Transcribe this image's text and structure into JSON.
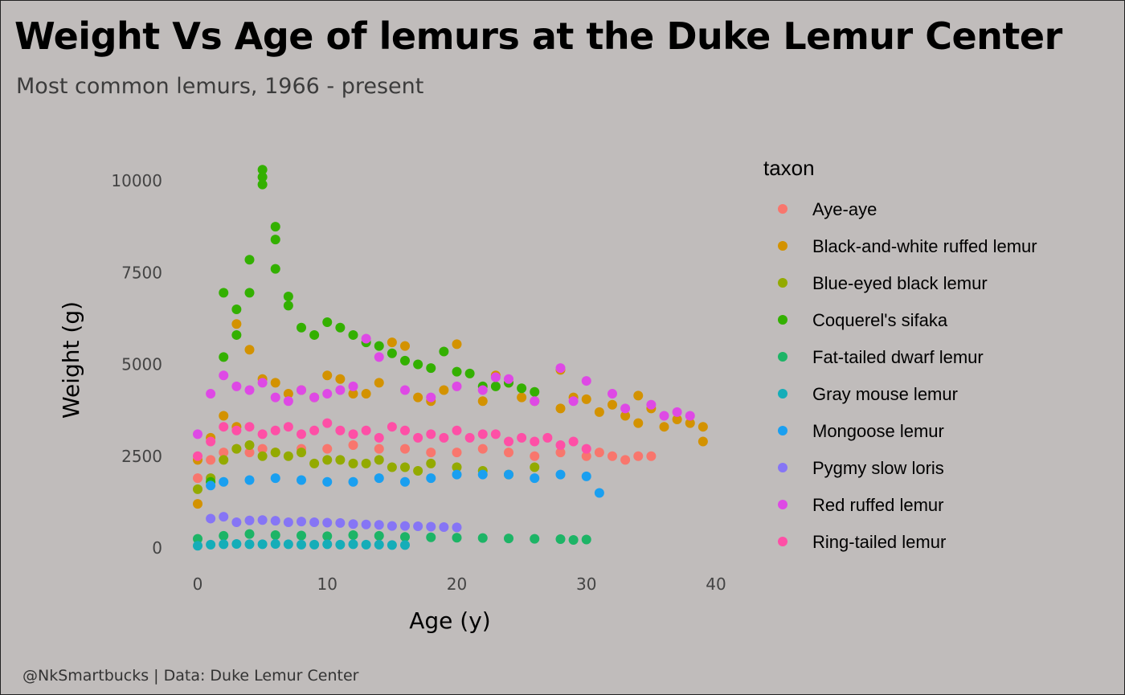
{
  "header": {
    "title": "Weight Vs Age of lemurs at the Duke Lemur Center",
    "subtitle": "Most common lemurs, 1966 - present"
  },
  "footer": {
    "caption": "@NkSmartbucks | Data: Duke Lemur Center"
  },
  "colors": {
    "background": "#c0bcbb"
  },
  "chart_data": {
    "type": "scatter",
    "title": "Weight Vs Age of lemurs at the Duke Lemur Center",
    "subtitle": "Most common lemurs, 1966 - present",
    "xlabel": "Age (y)",
    "ylabel": "Weight (g)",
    "xlim": [
      -1.5,
      41
    ],
    "ylim": [
      -400,
      10600
    ],
    "x_ticks": [
      0,
      10,
      20,
      30,
      40
    ],
    "y_ticks": [
      0,
      2500,
      5000,
      7500,
      10000
    ],
    "x_tick_labels": [
      "0",
      "10",
      "20",
      "30",
      "40"
    ],
    "y_tick_labels": [
      "0",
      "2500",
      "5000",
      "7500",
      "10000"
    ],
    "grid": false,
    "legend": {
      "title": "taxon",
      "placement": "right"
    },
    "series": [
      {
        "name": "Aye-aye",
        "color": "#f8766d",
        "x": [
          0,
          1,
          2,
          3,
          4,
          5,
          6,
          8,
          10,
          12,
          14,
          16,
          18,
          20,
          22,
          24,
          26,
          28,
          30,
          31,
          32,
          33,
          34,
          35
        ],
        "y": [
          1900,
          2400,
          2600,
          2700,
          2600,
          2700,
          2600,
          2700,
          2700,
          2800,
          2700,
          2700,
          2600,
          2600,
          2700,
          2600,
          2500,
          2600,
          2500,
          2600,
          2500,
          2400,
          2500,
          2500
        ]
      },
      {
        "name": "Black-and-white ruffed lemur",
        "color": "#d39200",
        "x": [
          0,
          0,
          1,
          2,
          3,
          3,
          4,
          5,
          6,
          7,
          8,
          9,
          10,
          11,
          12,
          13,
          14,
          15,
          16,
          17,
          18,
          19,
          20,
          22,
          23,
          24,
          25,
          26,
          28,
          28,
          29,
          30,
          31,
          32,
          33,
          34,
          34,
          35,
          36,
          37,
          38,
          39,
          39
        ],
        "y": [
          1200,
          2400,
          3000,
          3600,
          6100,
          3300,
          5400,
          4600,
          4500,
          4200,
          4300,
          4100,
          4700,
          4600,
          4200,
          4200,
          4500,
          5600,
          5500,
          4100,
          4000,
          4300,
          5550,
          4000,
          4700,
          4500,
          4100,
          4000,
          4850,
          3800,
          4100,
          4050,
          3700,
          3900,
          3600,
          4150,
          3400,
          3800,
          3300,
          3500,
          3400,
          3300,
          2900
        ]
      },
      {
        "name": "Blue-eyed black lemur",
        "color": "#93aa00",
        "x": [
          0,
          1,
          2,
          3,
          4,
          5,
          6,
          7,
          8,
          9,
          10,
          11,
          12,
          13,
          14,
          15,
          16,
          17,
          18,
          20,
          22,
          24,
          26
        ],
        "y": [
          1600,
          1900,
          2400,
          2700,
          2800,
          2500,
          2600,
          2500,
          2600,
          2300,
          2400,
          2400,
          2300,
          2300,
          2400,
          2200,
          2200,
          2100,
          2300,
          2200,
          2100,
          2000,
          2200
        ]
      },
      {
        "name": "Coquerel's sifaka",
        "color": "#33b000",
        "x": [
          1,
          2,
          2,
          3,
          3,
          4,
          4,
          5,
          5,
          5,
          6,
          6,
          6,
          7,
          7,
          8,
          9,
          10,
          11,
          12,
          13,
          14,
          15,
          16,
          17,
          18,
          19,
          20,
          21,
          22,
          23,
          24,
          25,
          26
        ],
        "y": [
          1800,
          5200,
          6950,
          6500,
          5800,
          7850,
          6950,
          10300,
          10100,
          9900,
          8750,
          8400,
          7600,
          6850,
          6600,
          6000,
          5800,
          6150,
          6000,
          5800,
          5600,
          5500,
          5300,
          5100,
          5000,
          4900,
          5350,
          4800,
          4750,
          4400,
          4400,
          4500,
          4350,
          4250
        ]
      },
      {
        "name": "Fat-tailed dwarf lemur",
        "color": "#1db466",
        "x": [
          0,
          2,
          4,
          6,
          8,
          10,
          12,
          14,
          16,
          18,
          20,
          22,
          24,
          26,
          28,
          29,
          30
        ],
        "y": [
          250,
          330,
          380,
          350,
          340,
          320,
          350,
          330,
          300,
          290,
          280,
          270,
          260,
          250,
          240,
          220,
          230
        ]
      },
      {
        "name": "Gray mouse lemur",
        "color": "#15adb8",
        "x": [
          0,
          1,
          2,
          3,
          4,
          5,
          6,
          7,
          8,
          9,
          10,
          11,
          12,
          13,
          14,
          15,
          16
        ],
        "y": [
          60,
          90,
          100,
          110,
          100,
          100,
          110,
          100,
          90,
          90,
          100,
          90,
          100,
          90,
          90,
          80,
          80
        ]
      },
      {
        "name": "Mongoose lemur",
        "color": "#1a9ff0",
        "x": [
          1,
          2,
          4,
          6,
          8,
          10,
          12,
          14,
          16,
          18,
          20,
          22,
          24,
          26,
          28,
          30,
          31
        ],
        "y": [
          1700,
          1800,
          1850,
          1900,
          1850,
          1800,
          1800,
          1900,
          1800,
          1900,
          2000,
          2000,
          2000,
          1900,
          2000,
          1950,
          1500
        ]
      },
      {
        "name": "Pygmy slow loris",
        "color": "#8675f5",
        "x": [
          1,
          2,
          3,
          4,
          5,
          6,
          7,
          8,
          9,
          10,
          11,
          12,
          13,
          14,
          15,
          16,
          17,
          18,
          19,
          20
        ],
        "y": [
          800,
          850,
          700,
          750,
          760,
          740,
          700,
          720,
          700,
          690,
          680,
          650,
          640,
          630,
          600,
          600,
          590,
          580,
          570,
          560
        ]
      },
      {
        "name": "Red ruffed lemur",
        "color": "#de49e5",
        "x": [
          0,
          1,
          2,
          3,
          4,
          5,
          6,
          7,
          8,
          9,
          10,
          11,
          12,
          13,
          14,
          16,
          18,
          20,
          22,
          23,
          24,
          26,
          28,
          29,
          30,
          32,
          33,
          35,
          36,
          37,
          38
        ],
        "y": [
          3100,
          4200,
          4700,
          4400,
          4300,
          4500,
          4100,
          4000,
          4300,
          4100,
          4200,
          4300,
          4400,
          5700,
          5200,
          4300,
          4100,
          4400,
          4300,
          4650,
          4600,
          4000,
          4900,
          4000,
          4550,
          4200,
          3800,
          3900,
          3600,
          3700,
          3600
        ]
      },
      {
        "name": "Ring-tailed lemur",
        "color": "#fe4fa6",
        "x": [
          0,
          1,
          2,
          3,
          4,
          5,
          6,
          7,
          8,
          9,
          10,
          11,
          12,
          13,
          14,
          15,
          16,
          17,
          18,
          19,
          20,
          21,
          22,
          23,
          24,
          25,
          26,
          27,
          28,
          29,
          30
        ],
        "y": [
          2500,
          2900,
          3300,
          3200,
          3300,
          3100,
          3200,
          3300,
          3100,
          3200,
          3400,
          3200,
          3100,
          3200,
          3000,
          3300,
          3200,
          3000,
          3100,
          3000,
          3200,
          3000,
          3100,
          3100,
          2900,
          3000,
          2900,
          3000,
          2800,
          2900,
          2700
        ]
      }
    ]
  }
}
